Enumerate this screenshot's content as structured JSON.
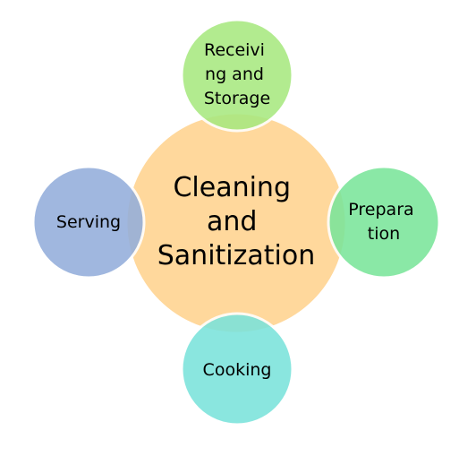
{
  "diagram": {
    "center": {
      "lines": [
        "Cleaning",
        "and",
        "Sanitization"
      ],
      "color": "#FFD38F"
    },
    "nodes": [
      {
        "id": "receiving",
        "lines": [
          "Receivi",
          "ng and",
          "Storage"
        ],
        "color": "#A8E980"
      },
      {
        "id": "preparation",
        "lines": [
          "Prepara",
          "tion"
        ],
        "color": "#7BE59A"
      },
      {
        "id": "cooking",
        "lines": [
          "Cooking"
        ],
        "color": "#7BE3DB"
      },
      {
        "id": "serving",
        "lines": [
          "Serving"
        ],
        "color": "#93AEDB"
      }
    ]
  }
}
